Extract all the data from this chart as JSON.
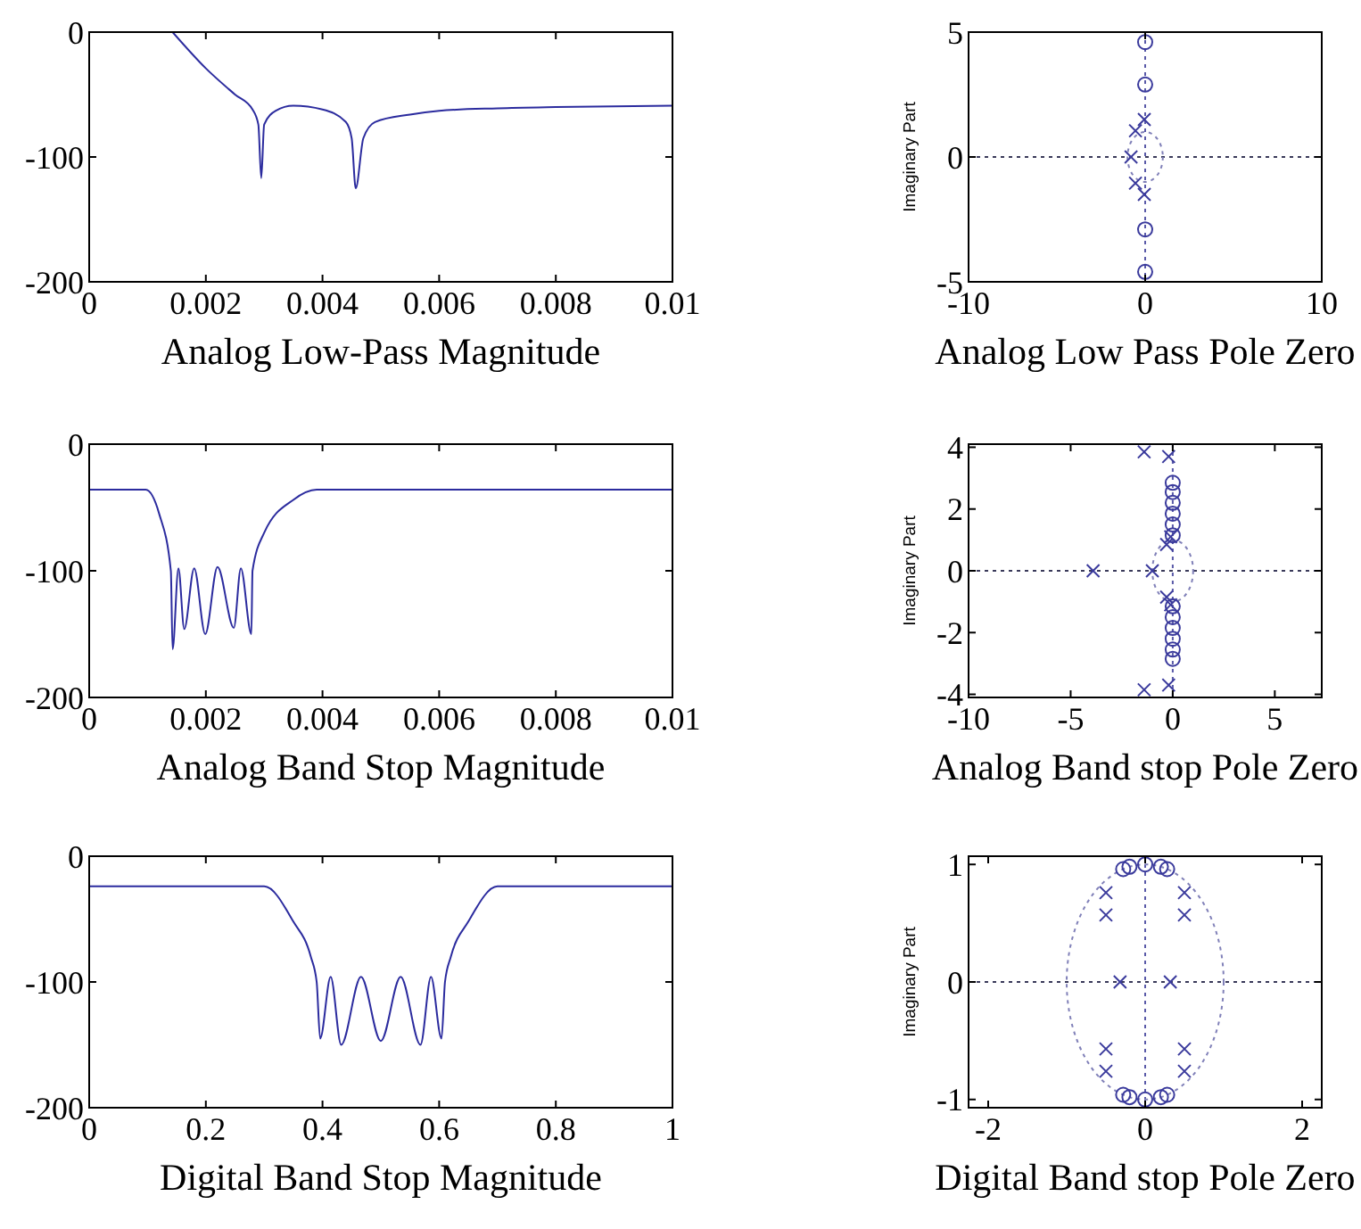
{
  "chart_data": [
    {
      "type": "line",
      "xlabel": "Analog Low-Pass Magnitude",
      "xlim": [
        0,
        0.01
      ],
      "ylim": [
        -200,
        0
      ],
      "xticks": [
        0,
        0.002,
        0.004,
        0.006,
        0.008,
        0.01
      ],
      "yticks": [
        -200,
        -100,
        0
      ],
      "marker": "none",
      "line_style": "solid",
      "series": [
        {
          "color": "#2b2b9e",
          "x": [
            0.00143,
            0.002,
            0.0025,
            0.0028,
            0.0029,
            0.00295,
            0.003,
            0.0032,
            0.0035,
            0.004,
            0.0044,
            0.0045,
            0.00457,
            0.0047,
            0.0049,
            0.0055,
            0.006,
            0.007,
            0.008,
            0.01
          ],
          "values": [
            0,
            -29,
            -50,
            -62,
            -74,
            -117,
            -74,
            -63,
            -59,
            -62,
            -72,
            -85,
            -125,
            -85,
            -72,
            -66,
            -63,
            -61,
            -60,
            -59
          ]
        }
      ]
    },
    {
      "type": "scatter",
      "xlabel": "Analog Low Pass Pole Zero",
      "ylabel": "Imaginary Part",
      "xlim": [
        -10,
        10
      ],
      "ylim": [
        -5,
        5
      ],
      "xticks": [
        -10,
        0,
        10
      ],
      "yticks": [
        -5,
        0,
        5
      ],
      "ref_lines": [
        {
          "axis": "x",
          "value": 0,
          "color": "#5a5aa8",
          "line_style": "dotted"
        },
        {
          "axis": "y",
          "value": 0,
          "color": "#3a3a5a",
          "line_style": "dotted"
        }
      ],
      "series": [
        {
          "marker": "circle",
          "color": "#3a3a9c",
          "x": [
            0,
            0,
            0,
            0
          ],
          "values": [
            4.6,
            2.9,
            -2.9,
            -4.6
          ]
        },
        {
          "marker": "cross",
          "color": "#3a3a9c",
          "x": [
            -0.8,
            -0.55,
            -0.55,
            -0.05,
            -0.05
          ],
          "values": [
            0,
            1.05,
            -1.05,
            1.5,
            -1.5
          ]
        }
      ]
    },
    {
      "type": "line",
      "xlabel": "Analog Band Stop Magnitude",
      "xlim": [
        0,
        0.01
      ],
      "ylim": [
        -200,
        0
      ],
      "xticks": [
        0,
        0.002,
        0.004,
        0.006,
        0.008,
        0.01
      ],
      "yticks": [
        -200,
        -100,
        0
      ],
      "marker": "none",
      "line_style": "solid",
      "series": [
        {
          "color": "#2b2b9e",
          "x": [
            0,
            0.00097,
            0.0012,
            0.0014,
            0.00143,
            0.00153,
            0.00163,
            0.0018,
            0.00199,
            0.0022,
            0.00248,
            0.0026,
            0.00278,
            0.0028,
            0.003,
            0.0035,
            0.0039,
            0.01
          ],
          "values": [
            -36,
            -36,
            -55,
            -100,
            -162,
            -98,
            -146,
            -98,
            -150,
            -97,
            -145,
            -98,
            -150,
            -100,
            -70,
            -44,
            -36,
            -36
          ]
        }
      ]
    },
    {
      "type": "scatter",
      "xlabel": "Analog Band stop Pole Zero",
      "ylabel": "Imaginary Part",
      "xlim": [
        -10,
        7.3
      ],
      "ylim": [
        -4.1,
        4.1
      ],
      "xticks": [
        -10,
        -5,
        0,
        5
      ],
      "yticks": [
        -4,
        -2,
        0,
        2,
        4
      ],
      "ref_lines": [
        {
          "axis": "x",
          "value": 0,
          "color": "#5a5aa8",
          "line_style": "dotted"
        },
        {
          "axis": "y",
          "value": 0,
          "color": "#3a3a5a",
          "line_style": "dotted"
        }
      ],
      "series": [
        {
          "marker": "circle",
          "color": "#3a3a9c",
          "x": [
            0,
            0,
            0,
            0,
            0,
            0,
            0,
            0,
            0,
            0,
            0,
            0
          ],
          "values": [
            2.85,
            2.55,
            2.2,
            1.85,
            1.5,
            1.15,
            -1.15,
            -1.5,
            -1.85,
            -2.2,
            -2.55,
            -2.85
          ]
        },
        {
          "marker": "cross",
          "color": "#3a3a9c",
          "x": [
            -1.4,
            -1.4,
            -0.2,
            -0.2,
            -3.9,
            -1,
            -0.3,
            -0.3,
            -0.1,
            -0.1
          ],
          "values": [
            3.85,
            -3.85,
            3.7,
            -3.7,
            0,
            0,
            0.85,
            -0.85,
            1.1,
            -1.1
          ]
        }
      ]
    },
    {
      "type": "line",
      "xlabel": "Digital Band Stop Magnitude",
      "xlim": [
        0,
        1
      ],
      "ylim": [
        -200,
        0
      ],
      "xticks": [
        0,
        0.2,
        0.4,
        0.6,
        0.8,
        1
      ],
      "yticks": [
        -200,
        -100,
        0
      ],
      "marker": "none",
      "line_style": "solid",
      "series": [
        {
          "color": "#2b2b9e",
          "x": [
            0,
            0.3,
            0.35,
            0.38,
            0.39,
            0.396,
            0.414,
            0.432,
            0.466,
            0.5,
            0.534,
            0.568,
            0.586,
            0.604,
            0.61,
            0.62,
            0.65,
            0.7,
            1
          ],
          "values": [
            -24,
            -24,
            -52,
            -80,
            -100,
            -145,
            -96,
            -150,
            -96,
            -147,
            -96,
            -150,
            -96,
            -145,
            -100,
            -80,
            -52,
            -24,
            -24
          ]
        }
      ]
    },
    {
      "type": "scatter",
      "xlabel": "Digital Band stop Pole Zero",
      "ylabel": "Imaginary Part",
      "xlim": [
        -2.25,
        2.25
      ],
      "ylim": [
        -1.07,
        1.07
      ],
      "xticks": [
        -2,
        0,
        2
      ],
      "yticks": [
        -1,
        0,
        1
      ],
      "ref_lines": [
        {
          "axis": "x",
          "value": 0,
          "color": "#5a5aa8",
          "line_style": "dotted"
        },
        {
          "axis": "y",
          "value": 0,
          "color": "#3a3a5a",
          "line_style": "dotted"
        }
      ],
      "series": [
        {
          "marker": "circle",
          "color": "#3a3a9c",
          "x": [
            -0.28,
            -0.2,
            0,
            0.2,
            0.28,
            -0.28,
            -0.2,
            0,
            0.2,
            0.28
          ],
          "values": [
            0.96,
            0.98,
            1,
            0.98,
            0.96,
            -0.96,
            -0.98,
            -1,
            -0.98,
            -0.96
          ]
        },
        {
          "marker": "cross",
          "color": "#3a3a9c",
          "x": [
            -0.5,
            -0.5,
            0.5,
            0.5,
            -0.5,
            -0.5,
            0.5,
            0.5,
            -0.32,
            0.32
          ],
          "values": [
            0.76,
            0.57,
            0.76,
            0.57,
            -0.76,
            -0.57,
            -0.76,
            -0.57,
            0,
            0
          ]
        }
      ]
    }
  ]
}
